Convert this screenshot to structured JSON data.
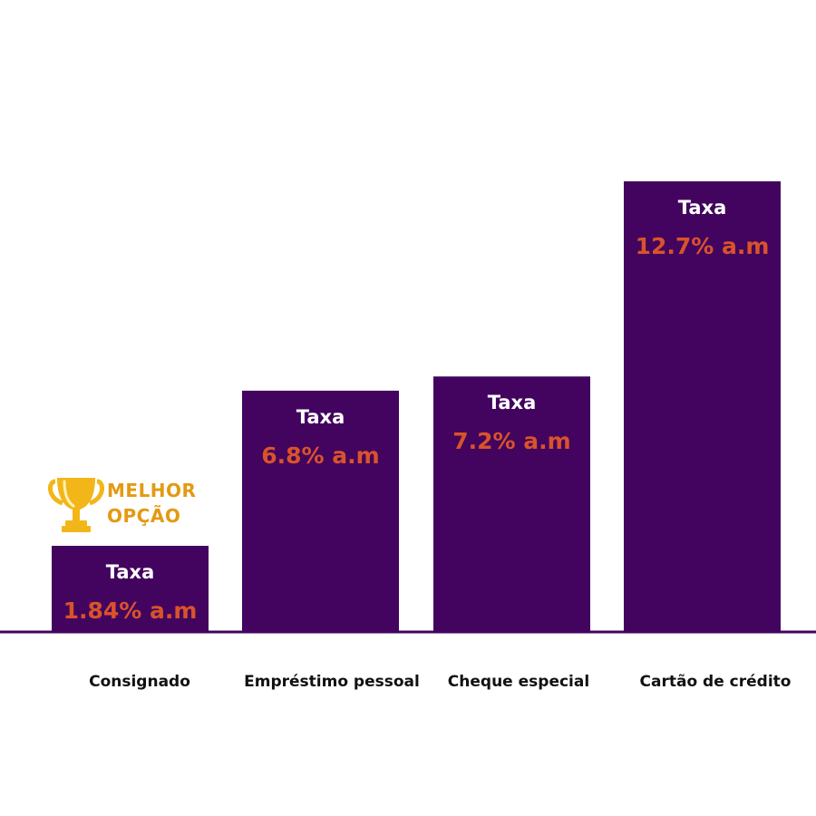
{
  "colors": {
    "bar": "#42045e",
    "baseline": "#42045e",
    "bar_title": "#ffffff",
    "bar_value": "#d9532a",
    "category_text": "#111111",
    "badge_text": "#e39a12",
    "trophy": "#f3b619"
  },
  "badge": {
    "line1": "MELHOR",
    "line2": "OPÇÃO",
    "icon": "trophy-icon"
  },
  "chart_data": {
    "type": "bar",
    "categories": [
      "Consignado",
      "Empréstimo pessoal",
      "Cheque especial",
      "Cartão de crédito"
    ],
    "values": [
      1.84,
      6.8,
      7.2,
      12.7
    ],
    "bar_titles": [
      "Taxa",
      "Taxa",
      "Taxa",
      "Taxa"
    ],
    "data_labels": [
      "1.84% a.m",
      "6.8% a.m",
      "7.2% a.m",
      "12.7% a.m"
    ],
    "title": "",
    "xlabel": "",
    "ylabel": "",
    "grid": false
  }
}
